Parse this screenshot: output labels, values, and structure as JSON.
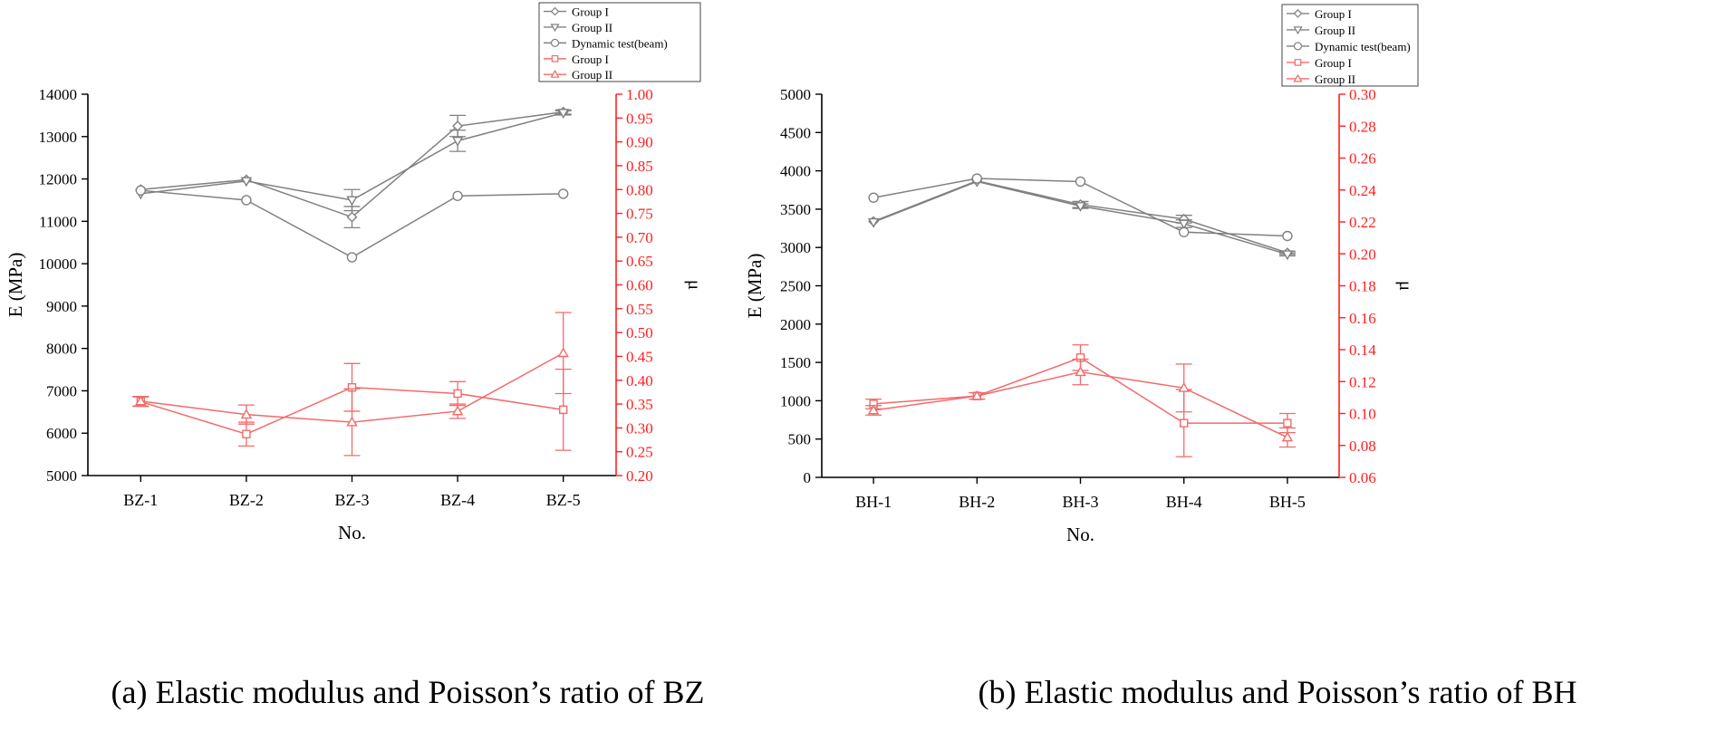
{
  "colors": {
    "e_series": "#808080",
    "mu_series": "#f26a6a",
    "axis": "#000000",
    "mu_axis": "#ff2020"
  },
  "chart_data": [
    {
      "type": "line",
      "caption": "(a) Elastic modulus and Poisson’s ratio of BZ",
      "categories": [
        "BZ-1",
        "BZ-2",
        "BZ-3",
        "BZ-4",
        "BZ-5"
      ],
      "xlabel": "No.",
      "ylabel_left": "E (MPa)",
      "ylabel_right": "μ",
      "ylim_left": [
        5000,
        14000
      ],
      "yticks_left": [
        5000,
        6000,
        7000,
        8000,
        9000,
        10000,
        11000,
        12000,
        13000,
        14000
      ],
      "ylim_right": [
        0.2,
        1.0
      ],
      "yticks_right": [
        "0.20",
        "0.25",
        "0.30",
        "0.35",
        "0.40",
        "0.45",
        "0.50",
        "0.55",
        "0.60",
        "0.65",
        "0.70",
        "0.75",
        "0.80",
        "0.85",
        "0.90",
        "0.95",
        "1.00"
      ],
      "series": [
        {
          "name": "Group I",
          "axis": "left",
          "marker": "diamond",
          "values": [
            11750,
            11980,
            11100,
            13250,
            13580
          ],
          "errors": [
            0,
            0,
            250,
            250,
            50
          ]
        },
        {
          "name": "Group II",
          "axis": "left",
          "marker": "triangle-down",
          "values": [
            11650,
            11950,
            11500,
            12900,
            13560
          ],
          "errors": [
            0,
            0,
            250,
            250,
            50
          ]
        },
        {
          "name": "Dynamic test(beam)",
          "axis": "left",
          "marker": "circle",
          "values": [
            11730,
            11500,
            10150,
            11600,
            11650
          ],
          "errors": [
            0,
            0,
            0,
            0,
            0
          ]
        },
        {
          "name": "Group I",
          "axis": "right",
          "marker": "square",
          "values": [
            0.355,
            0.287,
            0.385,
            0.372,
            0.338
          ],
          "errors": [
            0.01,
            0.025,
            0.05,
            0.025,
            0.085
          ]
        },
        {
          "name": "Group II",
          "axis": "right",
          "marker": "triangle-up",
          "values": [
            0.356,
            0.328,
            0.312,
            0.335,
            0.457
          ],
          "errors": [
            0.01,
            0.02,
            0.07,
            0.015,
            0.085
          ]
        }
      ]
    },
    {
      "type": "line",
      "caption": "(b) Elastic modulus and Poisson’s ratio of BH",
      "categories": [
        "BH-1",
        "BH-2",
        "BH-3",
        "BH-4",
        "BH-5"
      ],
      "xlabel": "No.",
      "ylabel_left": "E (MPa)",
      "ylabel_right": "μ",
      "ylim_left": [
        0,
        5000
      ],
      "yticks_left": [
        0,
        500,
        1000,
        1500,
        2000,
        2500,
        3000,
        3500,
        4000,
        4500,
        5000
      ],
      "ylim_right": [
        0.06,
        0.3
      ],
      "yticks_right": [
        "0.06",
        "0.08",
        "0.10",
        "0.12",
        "0.14",
        "0.16",
        "0.18",
        "0.20",
        "0.22",
        "0.24",
        "0.26",
        "0.28",
        "0.30"
      ],
      "series": [
        {
          "name": "Group I",
          "axis": "left",
          "marker": "diamond",
          "values": [
            3340,
            3870,
            3560,
            3370,
            2930
          ],
          "errors": [
            0,
            0,
            40,
            50,
            20
          ]
        },
        {
          "name": "Group II",
          "axis": "left",
          "marker": "triangle-down",
          "values": [
            3330,
            3860,
            3540,
            3310,
            2910
          ],
          "errors": [
            0,
            0,
            30,
            50,
            20
          ]
        },
        {
          "name": "Dynamic test(beam)",
          "axis": "left",
          "marker": "circle",
          "values": [
            3650,
            3900,
            3860,
            3200,
            3150
          ],
          "errors": [
            0,
            0,
            0,
            0,
            0
          ]
        },
        {
          "name": "Group I",
          "axis": "right",
          "marker": "square",
          "values": [
            0.106,
            0.111,
            0.135,
            0.094,
            0.094
          ],
          "errors": [
            0.003,
            0.002,
            0.008,
            0.021,
            0.006
          ]
        },
        {
          "name": "Group II",
          "axis": "right",
          "marker": "triangle-up",
          "values": [
            0.102,
            0.111,
            0.126,
            0.116,
            0.085
          ],
          "errors": [
            0.003,
            0.002,
            0.008,
            0.015,
            0.006
          ]
        }
      ]
    }
  ]
}
